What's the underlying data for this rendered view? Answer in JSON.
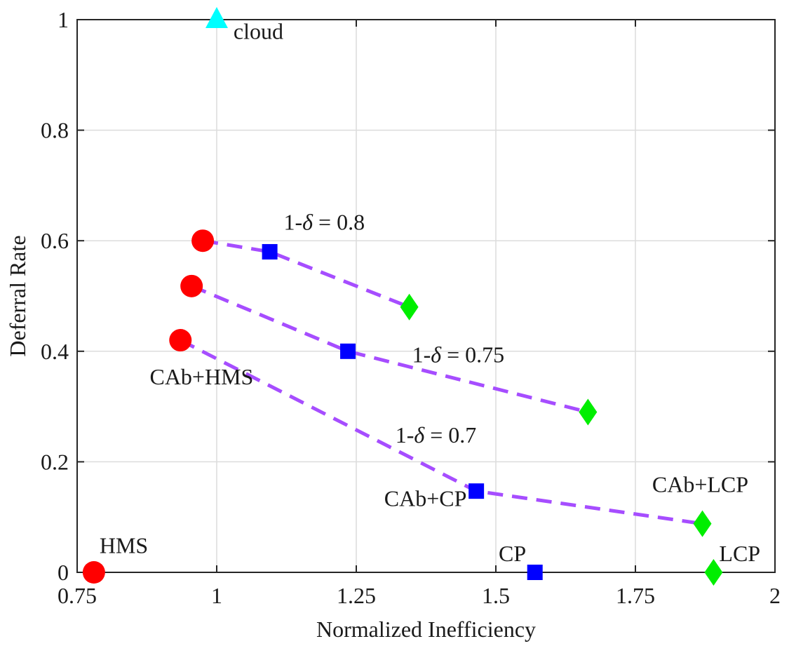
{
  "chart_data": {
    "type": "scatter",
    "title": "",
    "xlabel": "Normalized Inefficiency",
    "ylabel": "Deferral Rate",
    "xlim": [
      0.75,
      2.0
    ],
    "ylim": [
      0,
      1.0
    ],
    "grid": true,
    "x_ticks": [
      0.75,
      1.0,
      1.25,
      1.5,
      1.75,
      2.0
    ],
    "x_tick_labels": [
      "0.75",
      "1",
      "1.25",
      "1.5",
      "1.75",
      "2"
    ],
    "y_ticks": [
      0,
      0.2,
      0.4,
      0.6,
      0.8,
      1.0
    ],
    "y_tick_labels": [
      "0",
      "0.2",
      "0.4",
      "0.6",
      "0.8",
      "1"
    ],
    "colors": {
      "circle": "#ff0000",
      "square": "#0000ff",
      "diamond": "#00ee00",
      "triangle": "#00ffff",
      "line": "#a64dff"
    },
    "points": [
      {
        "name": "hms",
        "marker": "circle",
        "x": 0.78,
        "y": 0.0
      },
      {
        "name": "cloud",
        "marker": "triangle",
        "x": 1.0,
        "y": 1.0
      },
      {
        "name": "cp",
        "marker": "square",
        "x": 1.57,
        "y": 0.0
      },
      {
        "name": "lcp",
        "marker": "diamond",
        "x": 1.89,
        "y": 0.0
      }
    ],
    "series": [
      {
        "name": "1-δ = 0.8",
        "x": [
          0.975,
          1.095,
          1.345
        ],
        "y": [
          0.6,
          0.58,
          0.48
        ],
        "markers": [
          "circle",
          "square",
          "diamond"
        ]
      },
      {
        "name": "1-δ = 0.75",
        "x": [
          0.955,
          1.235,
          1.665
        ],
        "y": [
          0.518,
          0.4,
          0.29
        ],
        "markers": [
          "circle",
          "square",
          "diamond"
        ]
      },
      {
        "name": "1-δ = 0.7",
        "x": [
          0.935,
          1.465,
          1.87
        ],
        "y": [
          0.42,
          0.147,
          0.088
        ],
        "markers": [
          "circle",
          "square",
          "diamond"
        ]
      }
    ],
    "annotations": [
      {
        "name": "annotation-cloud",
        "text": "cloud",
        "x": 1.03,
        "y": 0.965,
        "italic_part": ""
      },
      {
        "name": "annotation-hms",
        "text": "HMS",
        "x": 0.79,
        "y": 0.035
      },
      {
        "name": "annotation-cp",
        "text": "CP",
        "x": 1.505,
        "y": 0.02
      },
      {
        "name": "annotation-lcp",
        "text": "LCP",
        "x": 1.9,
        "y": 0.02
      },
      {
        "name": "annotation-cab-hms",
        "text": "CAb+HMS",
        "x": 0.88,
        "y": 0.34
      },
      {
        "name": "annotation-cab-cp",
        "text": "CAb+CP",
        "x": 1.3,
        "y": 0.12
      },
      {
        "name": "annotation-cab-lcp",
        "text": "CAb+LCP",
        "x": 1.78,
        "y": 0.145
      }
    ],
    "delta_labels": [
      {
        "name": "label-delta-0-8",
        "prefix": "1-",
        "symbol": "δ",
        "suffix": " = 0.8",
        "x": 1.12,
        "y": 0.62
      },
      {
        "name": "label-delta-0-75",
        "prefix": "1-",
        "symbol": "δ",
        "suffix": " = 0.75",
        "x": 1.35,
        "y": 0.38
      },
      {
        "name": "label-delta-0-7",
        "prefix": "1-",
        "symbol": "δ",
        "suffix": " = 0.7",
        "x": 1.32,
        "y": 0.235
      }
    ]
  }
}
